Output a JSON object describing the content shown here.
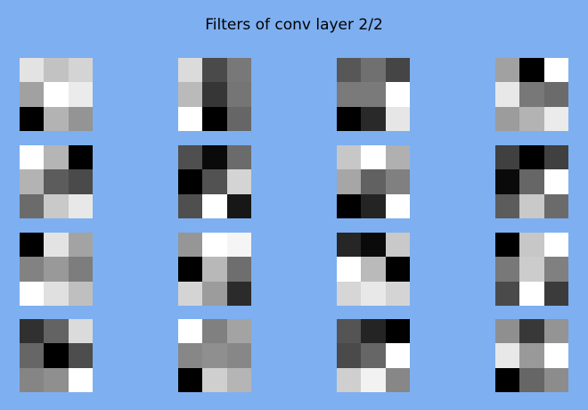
{
  "chart_data": {
    "type": "heatmap",
    "title": "Filters of conv layer 2/2",
    "colormap": "gray",
    "grid": {
      "rows": 4,
      "cols": 4
    },
    "kernel_size": [
      3,
      3
    ],
    "filters": [
      [
        [
          0.89,
          0.76,
          0.83
        ],
        [
          0.63,
          1.0,
          0.92
        ],
        [
          0.0,
          0.7,
          0.58
        ]
      ],
      [
        [
          0.86,
          0.29,
          0.47
        ],
        [
          0.73,
          0.21,
          0.46
        ],
        [
          1.0,
          0.0,
          0.4
        ]
      ],
      [
        [
          0.34,
          0.44,
          0.27
        ],
        [
          0.48,
          0.48,
          1.0
        ],
        [
          0.0,
          0.16,
          0.9
        ]
      ],
      [
        [
          0.63,
          0.0,
          1.0
        ],
        [
          0.91,
          0.47,
          0.42
        ],
        [
          0.61,
          0.7,
          0.92
        ]
      ],
      [
        [
          1.0,
          0.71,
          0.0
        ],
        [
          0.7,
          0.36,
          0.29
        ],
        [
          0.42,
          0.79,
          0.91
        ]
      ],
      [
        [
          0.31,
          0.04,
          0.42
        ],
        [
          0.0,
          0.32,
          0.83
        ],
        [
          0.31,
          1.0,
          0.09
        ]
      ],
      [
        [
          0.78,
          1.0,
          0.69
        ],
        [
          0.65,
          0.38,
          0.5
        ],
        [
          0.0,
          0.14,
          1.0
        ]
      ],
      [
        [
          0.25,
          0.0,
          0.25
        ],
        [
          0.04,
          0.4,
          1.0
        ],
        [
          0.36,
          0.79,
          0.42
        ]
      ],
      [
        [
          0.0,
          0.89,
          0.64
        ],
        [
          0.51,
          0.6,
          0.49
        ],
        [
          1.0,
          0.88,
          0.75
        ]
      ],
      [
        [
          0.59,
          1.0,
          0.96
        ],
        [
          0.0,
          0.72,
          0.43
        ],
        [
          0.83,
          0.61,
          0.17
        ]
      ],
      [
        [
          0.15,
          0.04,
          0.79
        ],
        [
          1.0,
          0.73,
          0.0
        ],
        [
          0.84,
          0.91,
          0.83
        ]
      ],
      [
        [
          0.0,
          0.78,
          1.0
        ],
        [
          0.47,
          0.8,
          0.5
        ],
        [
          0.29,
          1.0,
          0.23
        ]
      ],
      [
        [
          0.19,
          0.39,
          0.86
        ],
        [
          0.4,
          0.0,
          0.3
        ],
        [
          0.52,
          0.56,
          1.0
        ]
      ],
      [
        [
          1.0,
          0.5,
          0.64
        ],
        [
          0.53,
          0.56,
          0.53
        ],
        [
          0.0,
          0.81,
          0.71
        ]
      ],
      [
        [
          0.33,
          0.14,
          0.0
        ],
        [
          0.29,
          0.4,
          1.0
        ],
        [
          0.81,
          0.95,
          0.53
        ]
      ],
      [
        [
          0.56,
          0.22,
          0.58
        ],
        [
          0.91,
          0.6,
          1.0
        ],
        [
          0.0,
          0.4,
          0.55
        ]
      ]
    ]
  }
}
